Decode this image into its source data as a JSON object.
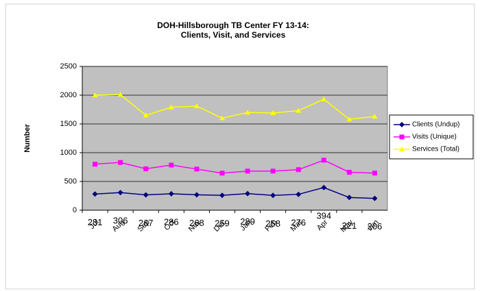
{
  "chart_data": {
    "type": "line",
    "title": "DOH-Hillsborough TB Center FY 13-14:",
    "subtitle": "Clients, Visit, and Services",
    "y_label": "Number",
    "categories": [
      "Jul",
      "Aug",
      "Sep",
      "Oct",
      "Nov",
      "Dec",
      "Jan",
      "Feb",
      "Mar",
      "Apr",
      "May",
      "Jun"
    ],
    "series": [
      {
        "name": "Clients (Undup)",
        "color": "#000080",
        "marker": "diamond",
        "values": [
          281,
          306,
          267,
          286,
          268,
          259,
          289,
          258,
          276,
          394,
          221,
          206
        ],
        "data_labels": true
      },
      {
        "name": "Visits (Unique)",
        "color": "#ff00ff",
        "marker": "square",
        "values": [
          800,
          830,
          720,
          785,
          715,
          645,
          680,
          680,
          705,
          870,
          660,
          645
        ]
      },
      {
        "name": "Services (Total)",
        "color": "#ffff00",
        "marker": "triangle",
        "values": [
          2000,
          2010,
          1650,
          1790,
          1810,
          1600,
          1700,
          1690,
          1730,
          1930,
          1580,
          1630
        ]
      }
    ],
    "ylim": [
      0,
      2500
    ],
    "yticks": [
      0,
      500,
      1000,
      1500,
      2000,
      2500
    ],
    "grid": true,
    "legend": "right",
    "plot_background": "#c0c0c0"
  }
}
